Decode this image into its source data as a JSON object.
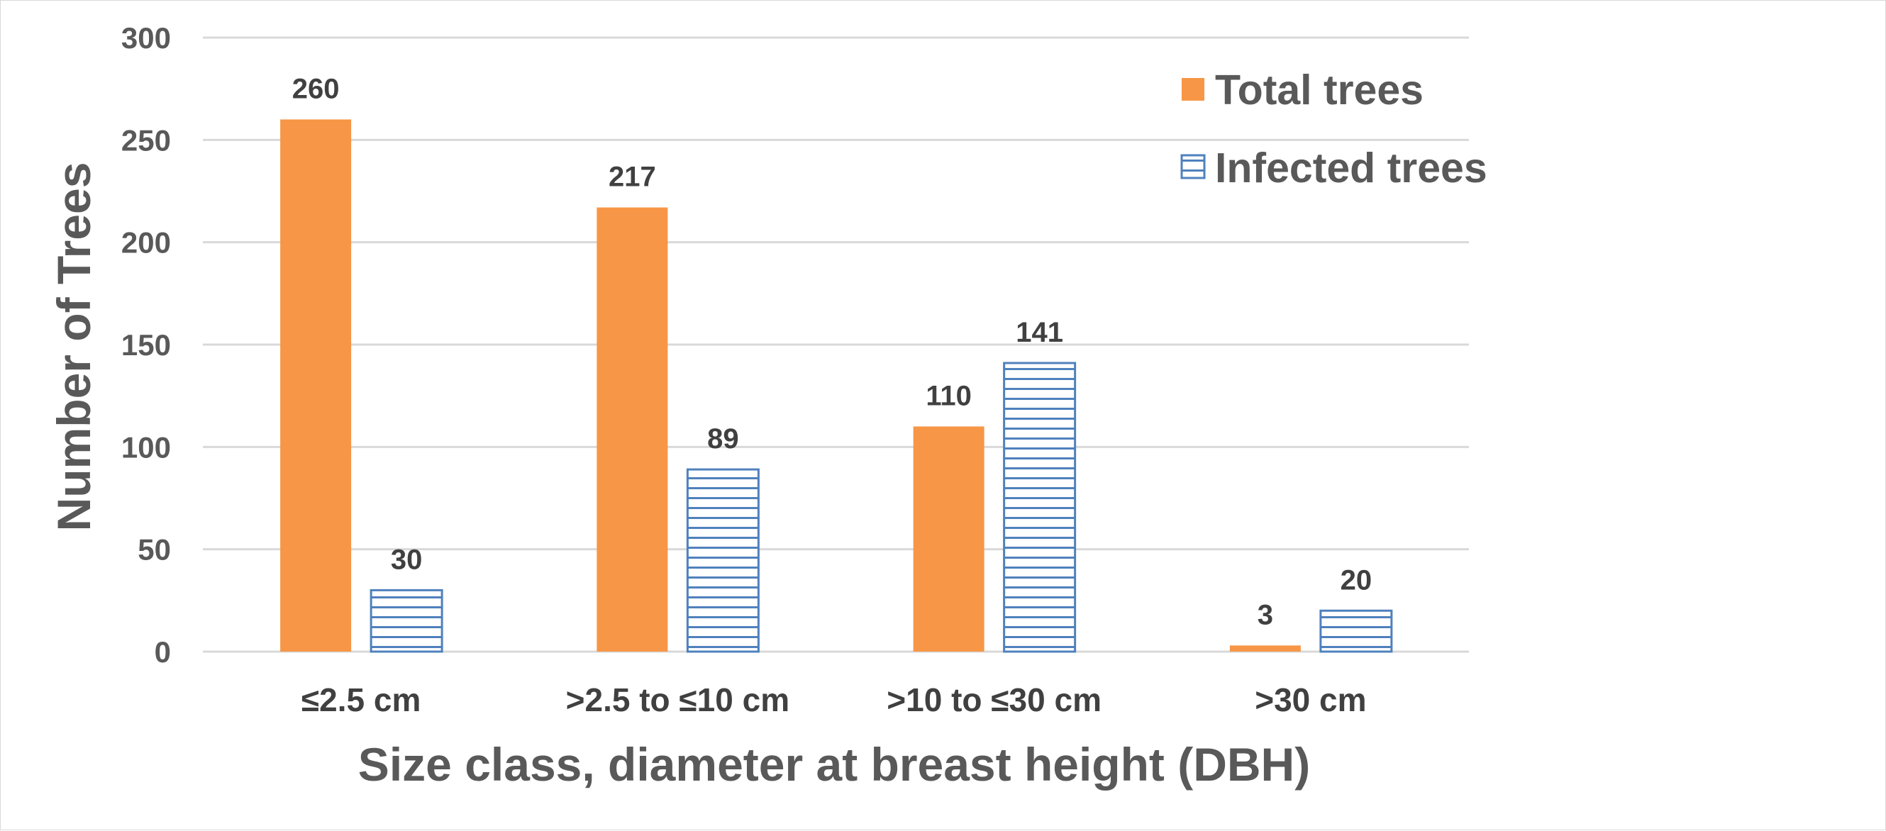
{
  "chart_data": {
    "type": "bar",
    "categories": [
      "≤2.5 cm",
      ">2.5 to ≤10 cm",
      ">10 to ≤30 cm",
      ">30 cm"
    ],
    "series": [
      {
        "name": "Total trees",
        "values": [
          260,
          217,
          110,
          3
        ],
        "color": "#f79646",
        "fill": "solid"
      },
      {
        "name": "Infected trees",
        "values": [
          30,
          89,
          141,
          20
        ],
        "color": "#4f81bd",
        "fill": "horizontal-stripes"
      }
    ],
    "title": "",
    "xlabel": "Size class, diameter at breast height (DBH)",
    "ylabel": "Number of Trees",
    "ylim": [
      0,
      300
    ],
    "yticks": [
      0,
      50,
      100,
      150,
      200,
      250,
      300
    ],
    "grid": true,
    "legend": "top-right",
    "data_labels": true
  }
}
